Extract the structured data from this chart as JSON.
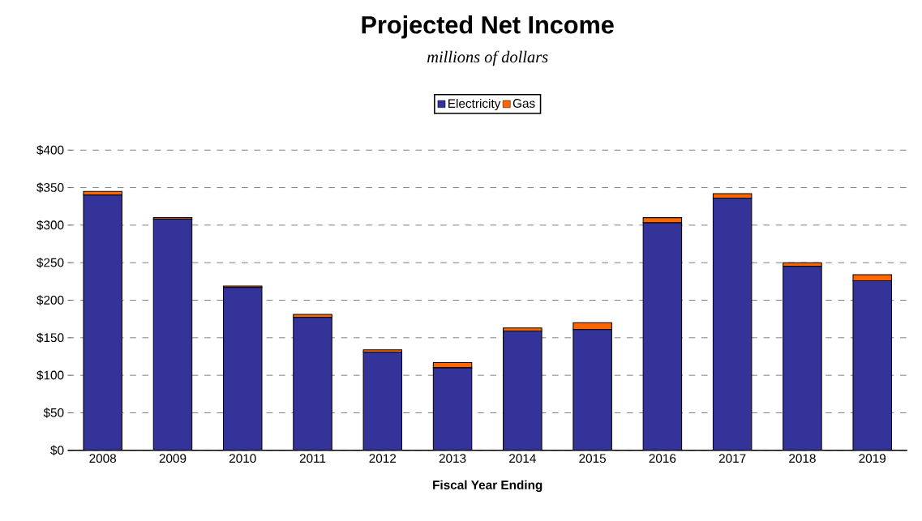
{
  "chart_data": {
    "type": "bar",
    "title": "Projected Net Income",
    "subtitle": "millions of dollars",
    "xlabel": "Fiscal Year Ending",
    "stacked": true,
    "legend": "top",
    "grid": "y",
    "categories": [
      "2008",
      "2009",
      "2010",
      "2011",
      "2012",
      "2013",
      "2014",
      "2015",
      "2016",
      "2017",
      "2018",
      "2019"
    ],
    "series": [
      {
        "name": "Electricity",
        "color": "#333399",
        "values": [
          340,
          308,
          217,
          177,
          131,
          110,
          159,
          161,
          303,
          336,
          245,
          226
        ]
      },
      {
        "name": "Gas",
        "color": "#ff6600",
        "values": [
          5,
          2,
          2,
          4,
          3,
          7,
          4,
          9,
          7,
          6,
          5,
          8
        ]
      }
    ],
    "ylim": [
      0,
      400
    ],
    "yticks": [
      {
        "value": 0,
        "label": "$0"
      },
      {
        "value": 50,
        "label": "$50"
      },
      {
        "value": 100,
        "label": "$100"
      },
      {
        "value": 150,
        "label": "$150"
      },
      {
        "value": 200,
        "label": "$200"
      },
      {
        "value": 250,
        "label": "$250"
      },
      {
        "value": 300,
        "label": "$300"
      },
      {
        "value": 350,
        "label": "$350"
      },
      {
        "value": 400,
        "label": "$400"
      }
    ]
  }
}
